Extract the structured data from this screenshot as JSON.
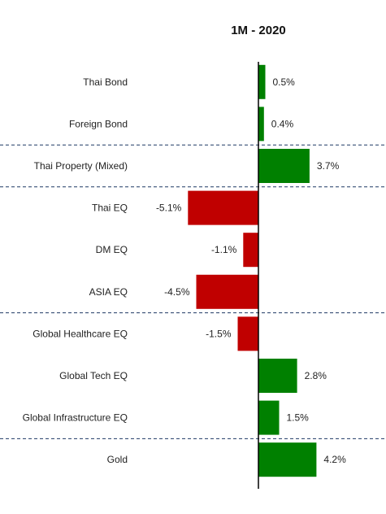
{
  "chart_data": {
    "type": "bar",
    "orientation": "horizontal",
    "title": "1M - 2020",
    "categories": [
      "Thai Bond",
      "Foreign Bond",
      "Thai Property (Mixed)",
      "Thai EQ",
      "DM EQ",
      "ASIA EQ",
      "Global Healthcare EQ",
      "Global Tech EQ",
      "Global Infrastructure EQ",
      "Gold"
    ],
    "values": [
      0.5,
      0.4,
      3.7,
      -5.1,
      -1.1,
      -4.5,
      -1.5,
      2.8,
      1.5,
      4.2
    ],
    "value_labels": [
      "0.5%",
      "0.4%",
      "3.7%",
      "-5.1%",
      "-1.1%",
      "-4.5%",
      "-1.5%",
      "2.8%",
      "1.5%",
      "4.2%"
    ],
    "group_separators_after": [
      "Foreign Bond",
      "Thai Property (Mixed)",
      "ASIA EQ",
      "Global Infrastructure EQ"
    ],
    "colors": {
      "positive": "#008000",
      "negative": "#c00000",
      "axis": "#000000",
      "separator": "#1f3864"
    },
    "xlim": [
      -5.6,
      6.0
    ],
    "grid": false,
    "legend": "none"
  }
}
